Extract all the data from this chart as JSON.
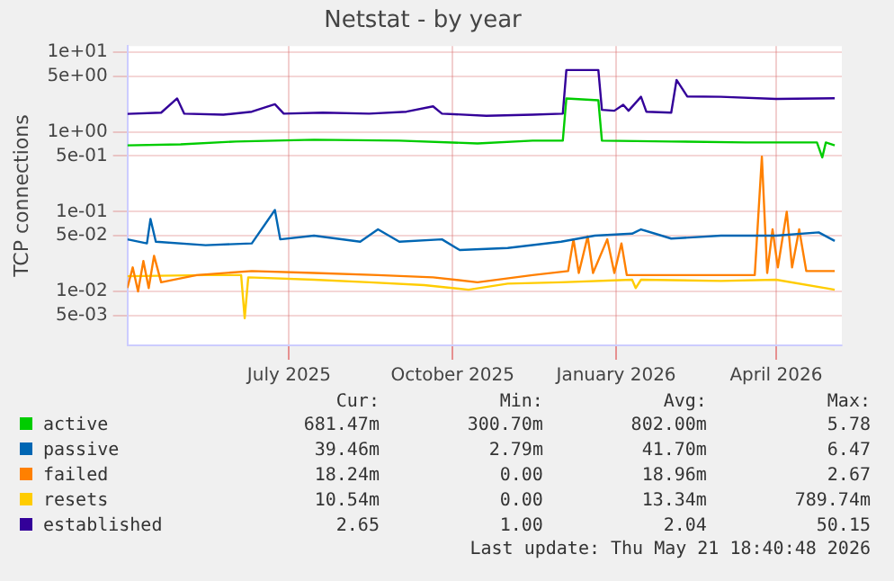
{
  "chart_data": {
    "type": "line",
    "title": "Netstat - by year",
    "ylabel": "TCP connections",
    "log": "y",
    "grid": true,
    "legend": "bottom",
    "marker": "none",
    "line_style": "solid",
    "xlim": [
      "2025-04-01",
      "2026-05-08"
    ],
    "xticks": [
      {
        "value": "2025-07-01",
        "label": "July 2025"
      },
      {
        "value": "2025-10-01",
        "label": "October 2025"
      },
      {
        "value": "2026-01-01",
        "label": "January 2026"
      },
      {
        "value": "2026-04-01",
        "label": "April 2026"
      }
    ],
    "ylim": [
      0.0021,
      12
    ],
    "yticks": [
      {
        "value": 10,
        "label": "1e+01"
      },
      {
        "value": 5,
        "label": "5e+00"
      },
      {
        "value": 1,
        "label": "1e+00"
      },
      {
        "value": 0.5,
        "label": "5e-01"
      },
      {
        "value": 0.1,
        "label": "1e-01"
      },
      {
        "value": 0.05,
        "label": "5e-02"
      },
      {
        "value": 0.01,
        "label": "1e-02"
      },
      {
        "value": 0.005,
        "label": "5e-03"
      }
    ],
    "series": [
      {
        "name": "active",
        "color": "#00cc00",
        "x": [
          "2025-04-01",
          "2025-05-01",
          "2025-06-01",
          "2025-07-15",
          "2025-09-01",
          "2025-10-15",
          "2025-11-15",
          "2025-12-02",
          "2025-12-04",
          "2025-12-22",
          "2025-12-24",
          "2026-02-01",
          "2026-03-15",
          "2026-04-24",
          "2026-04-27",
          "2026-04-29",
          "2026-05-04"
        ],
        "values": [
          0.68,
          0.7,
          0.76,
          0.8,
          0.78,
          0.72,
          0.78,
          0.78,
          2.64,
          2.5,
          0.78,
          0.76,
          0.74,
          0.74,
          0.48,
          0.74,
          0.68
        ]
      },
      {
        "name": "passive",
        "color": "#0066b3",
        "x": [
          "2025-04-01",
          "2025-04-12",
          "2025-04-14",
          "2025-04-17",
          "2025-05-15",
          "2025-06-10",
          "2025-06-23",
          "2025-06-26",
          "2025-07-15",
          "2025-08-10",
          "2025-08-20",
          "2025-09-01",
          "2025-09-25",
          "2025-10-05",
          "2025-11-01",
          "2025-12-01",
          "2025-12-20",
          "2026-01-10",
          "2026-01-15",
          "2026-02-01",
          "2026-03-01",
          "2026-04-01",
          "2026-04-25",
          "2026-05-04"
        ],
        "values": [
          0.045,
          0.04,
          0.081,
          0.042,
          0.038,
          0.04,
          0.105,
          0.045,
          0.05,
          0.042,
          0.06,
          0.042,
          0.045,
          0.033,
          0.035,
          0.042,
          0.05,
          0.053,
          0.06,
          0.046,
          0.05,
          0.05,
          0.055,
          0.043
        ]
      },
      {
        "name": "failed",
        "color": "#ff8000",
        "x": [
          "2025-04-01",
          "2025-04-04",
          "2025-04-07",
          "2025-04-10",
          "2025-04-13",
          "2025-04-16",
          "2025-04-20",
          "2025-05-10",
          "2025-06-10",
          "2025-07-15",
          "2025-08-20",
          "2025-09-20",
          "2025-10-15",
          "2025-11-15",
          "2025-12-05",
          "2025-12-08",
          "2025-12-11",
          "2025-12-16",
          "2025-12-19",
          "2025-12-27",
          "2025-12-31",
          "2026-01-04",
          "2026-01-07",
          "2026-03-01",
          "2026-03-20",
          "2026-03-24",
          "2026-03-27",
          "2026-03-30",
          "2026-04-02",
          "2026-04-07",
          "2026-04-10",
          "2026-04-14",
          "2026-04-18",
          "2026-05-04"
        ],
        "values": [
          0.011,
          0.02,
          0.01,
          0.024,
          0.011,
          0.028,
          0.013,
          0.016,
          0.018,
          0.017,
          0.016,
          0.015,
          0.013,
          0.016,
          0.018,
          0.045,
          0.017,
          0.049,
          0.017,
          0.045,
          0.017,
          0.04,
          0.016,
          0.016,
          0.016,
          0.49,
          0.017,
          0.06,
          0.02,
          0.1,
          0.02,
          0.06,
          0.018,
          0.018
        ]
      },
      {
        "name": "resets",
        "color": "#ffcc00",
        "x": [
          "2025-04-01",
          "2025-05-15",
          "2025-06-04",
          "2025-06-06",
          "2025-06-08",
          "2025-07-15",
          "2025-08-15",
          "2025-09-15",
          "2025-10-10",
          "2025-11-01",
          "2025-12-01",
          "2026-01-10",
          "2026-01-12",
          "2026-01-15",
          "2026-03-01",
          "2026-04-01",
          "2026-05-04"
        ],
        "values": [
          0.0155,
          0.016,
          0.016,
          0.0046,
          0.015,
          0.014,
          0.013,
          0.012,
          0.0105,
          0.0125,
          0.013,
          0.014,
          0.011,
          0.014,
          0.0135,
          0.014,
          0.0105
        ]
      },
      {
        "name": "established",
        "color": "#330099",
        "x": [
          "2025-04-01",
          "2025-04-20",
          "2025-04-29",
          "2025-05-03",
          "2025-05-25",
          "2025-06-10",
          "2025-06-23",
          "2025-06-28",
          "2025-07-20",
          "2025-08-15",
          "2025-09-05",
          "2025-09-20",
          "2025-09-25",
          "2025-10-20",
          "2025-11-15",
          "2025-12-02",
          "2025-12-04",
          "2025-12-22",
          "2025-12-24",
          "2025-12-31",
          "2026-01-05",
          "2026-01-08",
          "2026-01-15",
          "2026-01-18",
          "2026-02-01",
          "2026-02-04",
          "2026-02-10",
          "2026-03-01",
          "2026-04-01",
          "2026-05-04"
        ],
        "values": [
          1.69,
          1.75,
          2.64,
          1.7,
          1.65,
          1.8,
          2.23,
          1.7,
          1.75,
          1.7,
          1.8,
          2.1,
          1.7,
          1.6,
          1.65,
          1.7,
          6.0,
          6.0,
          1.9,
          1.85,
          2.2,
          1.85,
          2.77,
          1.8,
          1.75,
          4.5,
          2.8,
          2.77,
          2.6,
          2.65
        ]
      }
    ],
    "annotations": [
      "Cur:",
      "Min:",
      "Avg:",
      "Max:",
      "681.47m",
      "300.70m",
      "802.00m",
      "5.78",
      "39.46m",
      "2.79m",
      "41.70m",
      "6.47",
      "18.24m",
      "0.00",
      "18.96m",
      "2.67",
      "10.54m",
      "0.00",
      "13.34m",
      "789.74m",
      "2.65",
      "1.00",
      "2.04",
      "50.15",
      "Last update: Thu May 21 18:40:48 2026"
    ]
  }
}
